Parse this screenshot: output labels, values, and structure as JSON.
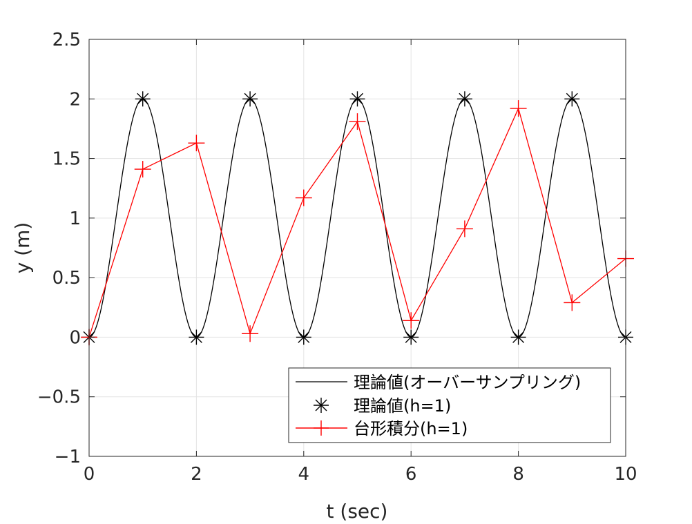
{
  "chart_data": {
    "type": "line",
    "xlabel": "t (sec)",
    "ylabel": "y (m)",
    "xlim": [
      0,
      10
    ],
    "ylim": [
      -1,
      2.5
    ],
    "xticks": [
      0,
      2,
      4,
      6,
      8,
      10
    ],
    "yticks": [
      -1,
      -0.5,
      0,
      0.5,
      1,
      1.5,
      2,
      2.5
    ],
    "xtick_labels": [
      "0",
      "2",
      "4",
      "6",
      "8",
      "10"
    ],
    "ytick_labels": [
      "−1",
      "−0.5",
      "0",
      "0.5",
      "1",
      "1.5",
      "2",
      "2.5"
    ],
    "grid": true,
    "legend_position": "bottom-right",
    "series": [
      {
        "name": "理論値(オーバーサンプリング)",
        "style": "line",
        "color": "#000000",
        "function": "1 - cos(pi * t)",
        "t_range": [
          0,
          10
        ]
      },
      {
        "name": "理論値(h=1)",
        "style": "asterisk-markers",
        "color": "#000000",
        "x": [
          0,
          1,
          2,
          3,
          4,
          5,
          6,
          7,
          8,
          9,
          10
        ],
        "y": [
          0,
          2,
          0,
          2,
          0,
          2,
          0,
          2,
          0,
          2,
          0
        ]
      },
      {
        "name": "台形積分(h=1)",
        "style": "line-plus-markers",
        "color": "#ff0000",
        "x": [
          0,
          1,
          2,
          3,
          4,
          5,
          6,
          7,
          8,
          9,
          10
        ],
        "y": [
          0,
          1.41,
          1.63,
          0.03,
          1.17,
          1.81,
          0.14,
          0.91,
          1.92,
          0.29,
          0.66
        ]
      }
    ]
  }
}
